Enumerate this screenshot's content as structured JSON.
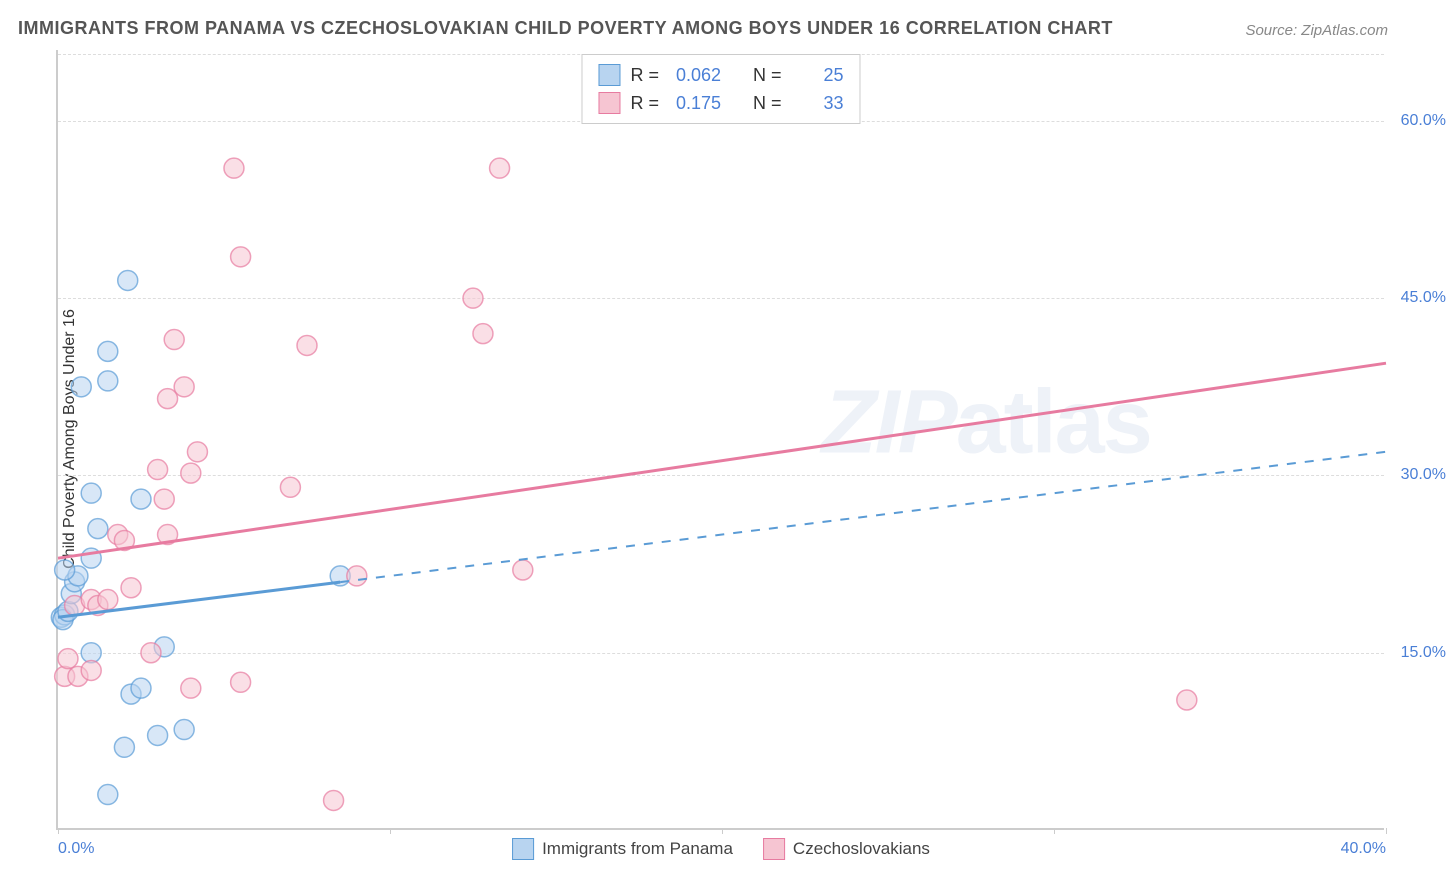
{
  "title": "IMMIGRANTS FROM PANAMA VS CZECHOSLOVAKIAN CHILD POVERTY AMONG BOYS UNDER 16 CORRELATION CHART",
  "source": "Source: ZipAtlas.com",
  "watermark_a": "ZIP",
  "watermark_b": "atlas",
  "y_axis": {
    "label": "Child Poverty Among Boys Under 16",
    "min": 0,
    "max": 66,
    "ticks": [
      15.0,
      30.0,
      45.0,
      60.0
    ],
    "tick_labels": [
      "15.0%",
      "30.0%",
      "45.0%",
      "60.0%"
    ],
    "label_color": "#333333",
    "tick_color": "#4a7fd6",
    "fontsize": 16
  },
  "x_axis": {
    "min": 0,
    "max": 40,
    "ticks": [
      0,
      10,
      20,
      30,
      40
    ],
    "tick_labels": [
      "0.0%",
      "",
      "",
      "",
      "40.0%"
    ],
    "tick_color": "#4a7fd6",
    "fontsize": 16
  },
  "grid": {
    "color": "#dddddd",
    "style": "dashed"
  },
  "series": [
    {
      "id": "panama",
      "name": "Immigrants from Panama",
      "fill": "#b8d4f0",
      "stroke": "#5a9bd5",
      "marker_opacity": 0.55,
      "marker_radius": 10,
      "r_value": "0.062",
      "n_value": "25",
      "trend": {
        "y_at_x0": 18.0,
        "y_at_xmax": 32.0,
        "solid_until_x": 8.5,
        "dashed": true
      },
      "points": [
        [
          0.1,
          18.0
        ],
        [
          0.2,
          18.2
        ],
        [
          0.15,
          17.8
        ],
        [
          0.3,
          18.5
        ],
        [
          0.4,
          20.0
        ],
        [
          0.5,
          21.0
        ],
        [
          0.6,
          21.5
        ],
        [
          0.2,
          22.0
        ],
        [
          1.0,
          23.0
        ],
        [
          1.2,
          25.5
        ],
        [
          1.0,
          28.5
        ],
        [
          2.5,
          28.0
        ],
        [
          1.5,
          38.0
        ],
        [
          2.1,
          46.5
        ],
        [
          1.5,
          40.5
        ],
        [
          0.7,
          37.5
        ],
        [
          3.2,
          15.5
        ],
        [
          1.0,
          15.0
        ],
        [
          2.2,
          11.5
        ],
        [
          2.5,
          12.0
        ],
        [
          3.0,
          8.0
        ],
        [
          3.8,
          8.5
        ],
        [
          2.0,
          7.0
        ],
        [
          1.5,
          3.0
        ],
        [
          8.5,
          21.5
        ]
      ]
    },
    {
      "id": "czech",
      "name": "Czechoslovakians",
      "fill": "#f6c5d2",
      "stroke": "#e77ba0",
      "marker_opacity": 0.55,
      "marker_radius": 10,
      "r_value": "0.175",
      "n_value": "33",
      "trend": {
        "y_at_x0": 23.0,
        "y_at_xmax": 39.5,
        "solid_until_x": 40,
        "dashed": false
      },
      "points": [
        [
          0.2,
          13.0
        ],
        [
          0.3,
          14.5
        ],
        [
          0.6,
          13.0
        ],
        [
          1.0,
          13.5
        ],
        [
          0.5,
          19.0
        ],
        [
          1.0,
          19.5
        ],
        [
          1.2,
          19.0
        ],
        [
          1.5,
          19.5
        ],
        [
          2.2,
          20.5
        ],
        [
          1.8,
          25.0
        ],
        [
          2.0,
          24.5
        ],
        [
          3.3,
          25.0
        ],
        [
          3.2,
          28.0
        ],
        [
          4.0,
          30.2
        ],
        [
          3.0,
          30.5
        ],
        [
          4.2,
          32.0
        ],
        [
          3.3,
          36.5
        ],
        [
          3.8,
          37.5
        ],
        [
          3.5,
          41.5
        ],
        [
          5.5,
          48.5
        ],
        [
          5.3,
          56.0
        ],
        [
          7.0,
          29.0
        ],
        [
          7.5,
          41.0
        ],
        [
          12.5,
          45.0
        ],
        [
          12.8,
          42.0
        ],
        [
          13.3,
          56.0
        ],
        [
          9.0,
          21.5
        ],
        [
          14.0,
          22.0
        ],
        [
          4.0,
          12.0
        ],
        [
          5.5,
          12.5
        ],
        [
          8.3,
          2.5
        ],
        [
          34.0,
          11.0
        ],
        [
          2.8,
          15.0
        ]
      ]
    }
  ],
  "stats_box": {
    "border_color": "#cccccc",
    "r_label": "R =",
    "n_label": "N ="
  },
  "x_legend": {
    "labels": [
      "Immigrants from Panama",
      "Czechoslovakians"
    ]
  },
  "background_color": "#ffffff"
}
